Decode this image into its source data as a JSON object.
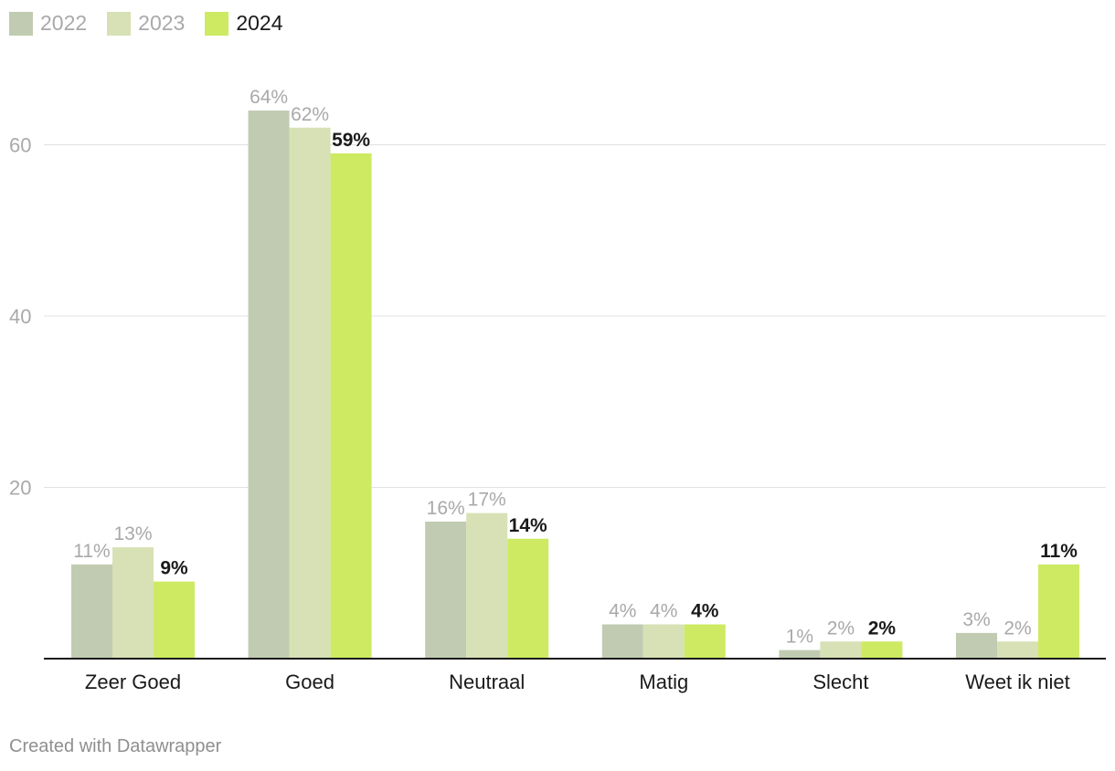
{
  "chart_data": {
    "type": "bar",
    "categories": [
      "Zeer Goed",
      "Goed",
      "Neutraal",
      "Matig",
      "Slecht",
      "Weet ik niet"
    ],
    "series": [
      {
        "name": "2022",
        "color": "#c1cbb1",
        "values": [
          11,
          64,
          16,
          4,
          1,
          3
        ],
        "labels": [
          "11%",
          "64%",
          "16%",
          "4%",
          "1%",
          "3%"
        ]
      },
      {
        "name": "2023",
        "color": "#d7e1b5",
        "values": [
          13,
          62,
          17,
          4,
          2,
          2
        ],
        "labels": [
          "13%",
          "62%",
          "17%",
          "4%",
          "2%",
          "2%"
        ]
      },
      {
        "name": "2024",
        "color": "#cdea62",
        "values": [
          9,
          59,
          14,
          4,
          2,
          11
        ],
        "labels": [
          "9%",
          "59%",
          "14%",
          "4%",
          "2%",
          "11%"
        ]
      }
    ],
    "yticks": [
      "20",
      "40",
      "60"
    ],
    "ylim": [
      0,
      60
    ],
    "grid": true,
    "legend_position": "top-left"
  },
  "footer": "Created with Datawrapper"
}
